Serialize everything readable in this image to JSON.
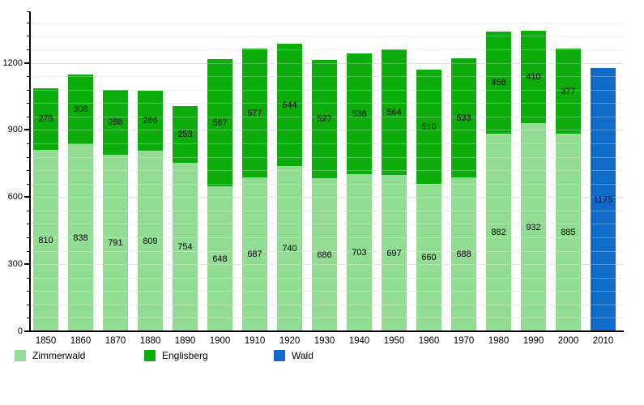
{
  "chart_data": {
    "type": "bar",
    "stacked": true,
    "title": "",
    "xlabel": "",
    "ylabel": "",
    "categories": [
      "1850",
      "1860",
      "1870",
      "1880",
      "1890",
      "1900",
      "1910",
      "1920",
      "1930",
      "1940",
      "1950",
      "1960",
      "1970",
      "1980",
      "1990",
      "2000",
      "2010"
    ],
    "series": [
      {
        "name": "Zimmerwald",
        "color": "#93DC93",
        "values": [
          810,
          838,
          791,
          809,
          754,
          648,
          687,
          740,
          686,
          703,
          697,
          660,
          688,
          882,
          932,
          885,
          null
        ]
      },
      {
        "name": "Englisberg",
        "color": "#0CAC0C",
        "values": [
          275,
          308,
          288,
          266,
          253,
          567,
          577,
          544,
          527,
          538,
          564,
          510,
          533,
          458,
          410,
          377,
          null
        ]
      },
      {
        "name": "Wald",
        "color": "#106BC8",
        "values": [
          null,
          null,
          null,
          null,
          null,
          null,
          null,
          null,
          null,
          null,
          null,
          null,
          null,
          null,
          null,
          null,
          1175
        ]
      }
    ],
    "yticks": [
      0,
      300,
      600,
      900,
      1200
    ],
    "ylim": [
      0,
      1430
    ],
    "minor_grid_step": 60,
    "grid": true,
    "legend_position": "bottom",
    "colors": {
      "grid_major": "#d9d9d9",
      "grid_minor": "#e8e8e8",
      "axis": "#000000",
      "background": "#ffffff"
    }
  }
}
